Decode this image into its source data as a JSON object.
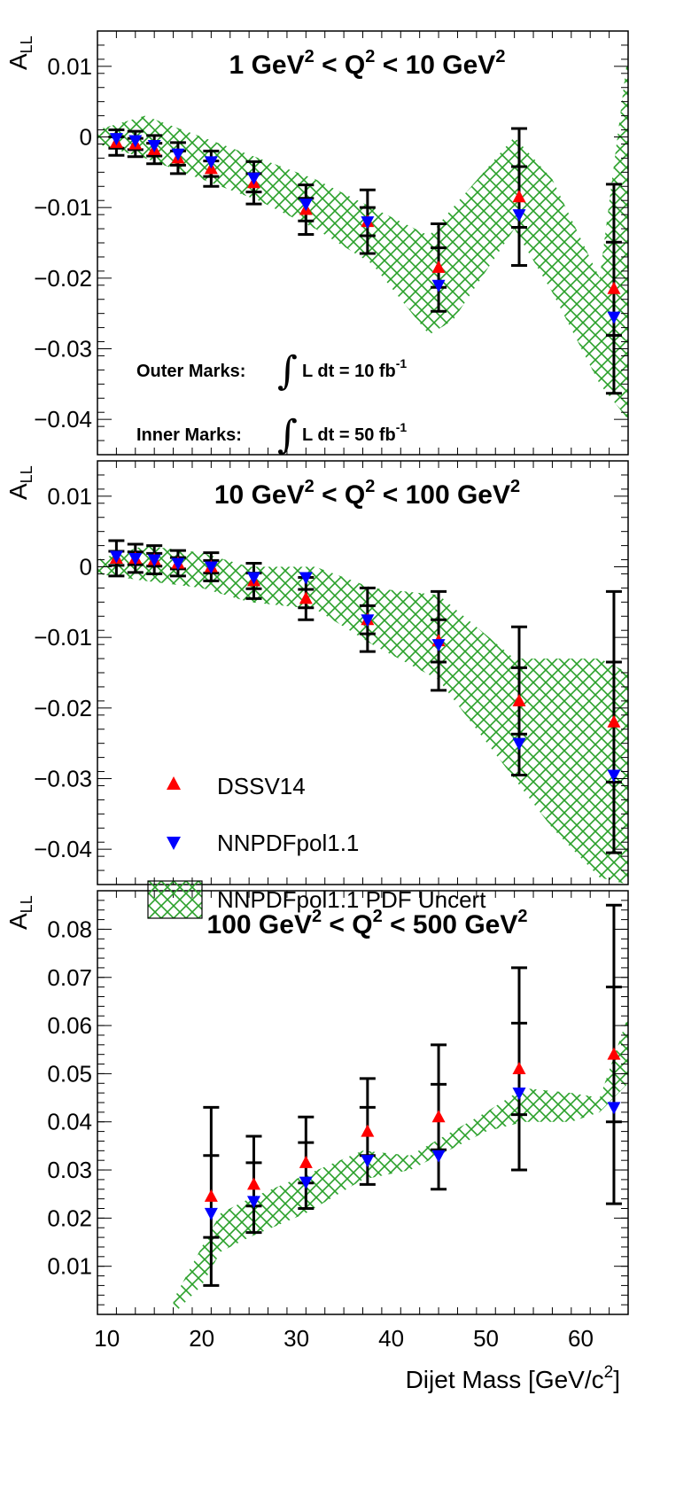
{
  "chart_data": {
    "type": "scatter",
    "xlabel": "Dijet Mass [GeV/c",
    "xlabel_sup": "2",
    "xlabel_end": "]",
    "xlim": [
      9,
      65
    ],
    "xticks": [
      10,
      20,
      30,
      40,
      50,
      60
    ],
    "ylabel": "A",
    "ylabel_sub": "LL",
    "colors": {
      "dssv": "#ff0000",
      "nnpdf": "#0000ff",
      "band": "#2aa02a",
      "error": "#000000"
    },
    "legend": {
      "dssv": "DSSV14",
      "nnpdf": "NNPDFpol1.1",
      "band": "NNPDFpol1.1 PDF Uncert"
    },
    "annotations": {
      "outer": {
        "label": "Outer Marks:",
        "expr": "L dt = 10 fb",
        "sup": "-1"
      },
      "inner": {
        "label": "Inner Marks:",
        "expr": "L dt = 50 fb",
        "sup": "-1"
      }
    },
    "panels": [
      {
        "title": [
          "1 GeV",
          "2",
          " < Q",
          "2",
          " < 10 GeV",
          "2"
        ],
        "ylim": [
          -0.045,
          0.015
        ],
        "yticks": [
          0.01,
          0,
          -0.01,
          -0.02,
          -0.03,
          -0.04
        ],
        "ytick_labels": [
          "0.01",
          "0",
          "−0.01",
          "−0.02",
          "−0.03",
          "−0.04"
        ],
        "points": [
          {
            "x": 11.0,
            "dssv": -0.0008,
            "nnpdf": -0.0002,
            "outer": 0.0018,
            "inner": 0.0008
          },
          {
            "x": 13.0,
            "dssv": -0.001,
            "nnpdf": -0.0005,
            "outer": 0.0018,
            "inner": 0.0008
          },
          {
            "x": 15.0,
            "dssv": -0.0018,
            "nnpdf": -0.0012,
            "outer": 0.002,
            "inner": 0.0009
          },
          {
            "x": 17.5,
            "dssv": -0.003,
            "nnpdf": -0.0024,
            "outer": 0.0022,
            "inner": 0.001
          },
          {
            "x": 21.0,
            "dssv": -0.0045,
            "nnpdf": -0.0035,
            "outer": 0.0025,
            "inner": 0.0011
          },
          {
            "x": 25.5,
            "dssv": -0.0065,
            "nnpdf": -0.0058,
            "outer": 0.003,
            "inner": 0.0013
          },
          {
            "x": 31.0,
            "dssv": -0.0103,
            "nnpdf": -0.0095,
            "outer": 0.0035,
            "inner": 0.0016
          },
          {
            "x": 37.5,
            "dssv": -0.012,
            "nnpdf": -0.012,
            "outer": 0.0045,
            "inner": 0.002
          },
          {
            "x": 45.0,
            "dssv": -0.0185,
            "nnpdf": -0.021,
            "outer": 0.0062,
            "inner": 0.0028
          },
          {
            "x": 53.5,
            "dssv": -0.0085,
            "nnpdf": -0.011,
            "outer": 0.0097,
            "inner": 0.0043
          },
          {
            "x": 63.5,
            "dssv": -0.0215,
            "nnpdf": -0.0255,
            "outer": 0.0148,
            "inner": 0.0066
          }
        ],
        "band": [
          {
            "x": 9.0,
            "lo": -0.001,
            "hi": 0.001
          },
          {
            "x": 14.0,
            "lo": -0.003,
            "hi": 0.003
          },
          {
            "x": 20.0,
            "lo": -0.006,
            "hi": 0.0
          },
          {
            "x": 26.0,
            "lo": -0.009,
            "hi": -0.003
          },
          {
            "x": 32.0,
            "lo": -0.013,
            "hi": -0.006
          },
          {
            "x": 38.0,
            "lo": -0.018,
            "hi": -0.01
          },
          {
            "x": 44.0,
            "lo": -0.028,
            "hi": -0.014
          },
          {
            "x": 46.5,
            "lo": -0.026,
            "hi": -0.01
          },
          {
            "x": 53.0,
            "lo": -0.013,
            "hi": 0.0
          },
          {
            "x": 57.0,
            "lo": -0.022,
            "hi": -0.006
          },
          {
            "x": 62.0,
            "lo": -0.035,
            "hi": -0.02
          },
          {
            "x": 65.0,
            "lo": -0.04,
            "hi": 0.012
          }
        ]
      },
      {
        "title": [
          "10 GeV",
          "2",
          " < Q",
          "2",
          " < 100 GeV",
          "2"
        ],
        "ylim": [
          -0.045,
          0.015
        ],
        "yticks": [
          0.01,
          0,
          -0.01,
          -0.02,
          -0.03,
          -0.04
        ],
        "ytick_labels": [
          "0.01",
          "0",
          "−0.01",
          "−0.02",
          "−0.03",
          "−0.04"
        ],
        "points": [
          {
            "x": 11.0,
            "dssv": 0.0012,
            "nnpdf": 0.0015,
            "outer": 0.0025,
            "inner": 0.001
          },
          {
            "x": 13.0,
            "dssv": 0.0012,
            "nnpdf": 0.0012,
            "outer": 0.002,
            "inner": 0.0009
          },
          {
            "x": 15.0,
            "dssv": 0.001,
            "nnpdf": 0.001,
            "outer": 0.002,
            "inner": 0.0009
          },
          {
            "x": 17.5,
            "dssv": 0.0005,
            "nnpdf": 0.0005,
            "outer": 0.0018,
            "inner": 0.0008
          },
          {
            "x": 21.0,
            "dssv": 0.0,
            "nnpdf": 0.0,
            "outer": 0.002,
            "inner": 0.0009
          },
          {
            "x": 25.5,
            "dssv": -0.002,
            "nnpdf": -0.0015,
            "outer": 0.0025,
            "inner": 0.0011
          },
          {
            "x": 31.0,
            "dssv": -0.0045,
            "nnpdf": -0.0015,
            "outer": 0.003,
            "inner": 0.0013
          },
          {
            "x": 37.5,
            "dssv": -0.0075,
            "nnpdf": -0.0075,
            "outer": 0.0045,
            "inner": 0.002
          },
          {
            "x": 45.0,
            "dssv": -0.0105,
            "nnpdf": -0.011,
            "outer": 0.007,
            "inner": 0.003
          },
          {
            "x": 53.5,
            "dssv": -0.019,
            "nnpdf": -0.025,
            "outer": 0.0105,
            "inner": 0.0047
          },
          {
            "x": 63.5,
            "dssv": -0.022,
            "nnpdf": -0.0295,
            "outer": 0.0185,
            "inner": 0.0085
          }
        ],
        "band": [
          {
            "x": 9.0,
            "lo": -0.001,
            "hi": 0.001
          },
          {
            "x": 14.0,
            "lo": -0.002,
            "hi": 0.003
          },
          {
            "x": 20.0,
            "lo": -0.003,
            "hi": 0.002
          },
          {
            "x": 25.0,
            "lo": -0.005,
            "hi": 0.0
          },
          {
            "x": 32.0,
            "lo": -0.006,
            "hi": 0.0
          },
          {
            "x": 38.0,
            "lo": -0.011,
            "hi": -0.003
          },
          {
            "x": 45.0,
            "lo": -0.016,
            "hi": -0.004
          },
          {
            "x": 53.0,
            "lo": -0.03,
            "hi": -0.013
          },
          {
            "x": 57.0,
            "lo": -0.037,
            "hi": -0.013
          },
          {
            "x": 62.0,
            "lo": -0.044,
            "hi": -0.013
          },
          {
            "x": 65.0,
            "lo": -0.045,
            "hi": -0.015
          }
        ]
      },
      {
        "title": [
          "100 GeV",
          "2",
          " < Q",
          "2",
          " < 500 GeV",
          "2"
        ],
        "ylim": [
          0.0,
          0.088
        ],
        "yticks": [
          0.08,
          0.07,
          0.06,
          0.05,
          0.04,
          0.03,
          0.02,
          0.01
        ],
        "ytick_labels": [
          "0.08",
          "0.07",
          "0.06",
          "0.05",
          "0.04",
          "0.03",
          "0.02",
          "0.01"
        ],
        "points": [
          {
            "x": 21.0,
            "dssv": 0.0245,
            "nnpdf": 0.021,
            "outer": 0.0185,
            "inner": 0.0085
          },
          {
            "x": 25.5,
            "dssv": 0.027,
            "nnpdf": 0.0235,
            "outer": 0.01,
            "inner": 0.0045
          },
          {
            "x": 31.0,
            "dssv": 0.0315,
            "nnpdf": 0.0275,
            "outer": 0.0095,
            "inner": 0.0042
          },
          {
            "x": 37.5,
            "dssv": 0.038,
            "nnpdf": 0.032,
            "outer": 0.011,
            "inner": 0.005
          },
          {
            "x": 45.0,
            "dssv": 0.041,
            "nnpdf": 0.033,
            "outer": 0.015,
            "inner": 0.0068
          },
          {
            "x": 53.5,
            "dssv": 0.051,
            "nnpdf": 0.046,
            "outer": 0.021,
            "inner": 0.0095
          },
          {
            "x": 63.5,
            "dssv": 0.054,
            "nnpdf": 0.043,
            "outer": 0.031,
            "inner": 0.014
          }
        ],
        "band": [
          {
            "x": 17.0,
            "lo": 0.0,
            "hi": 0.003
          },
          {
            "x": 20.0,
            "lo": 0.006,
            "hi": 0.014
          },
          {
            "x": 22.0,
            "lo": 0.013,
            "hi": 0.021
          },
          {
            "x": 25.0,
            "lo": 0.016,
            "hi": 0.024
          },
          {
            "x": 31.0,
            "lo": 0.021,
            "hi": 0.029
          },
          {
            "x": 37.0,
            "lo": 0.028,
            "hi": 0.034
          },
          {
            "x": 42.0,
            "lo": 0.03,
            "hi": 0.033
          },
          {
            "x": 50.0,
            "lo": 0.038,
            "hi": 0.042
          },
          {
            "x": 54.0,
            "lo": 0.04,
            "hi": 0.047
          },
          {
            "x": 59.0,
            "lo": 0.04,
            "hi": 0.046
          },
          {
            "x": 62.0,
            "lo": 0.042,
            "hi": 0.045
          },
          {
            "x": 65.0,
            "lo": 0.048,
            "hi": 0.062
          }
        ]
      }
    ]
  }
}
